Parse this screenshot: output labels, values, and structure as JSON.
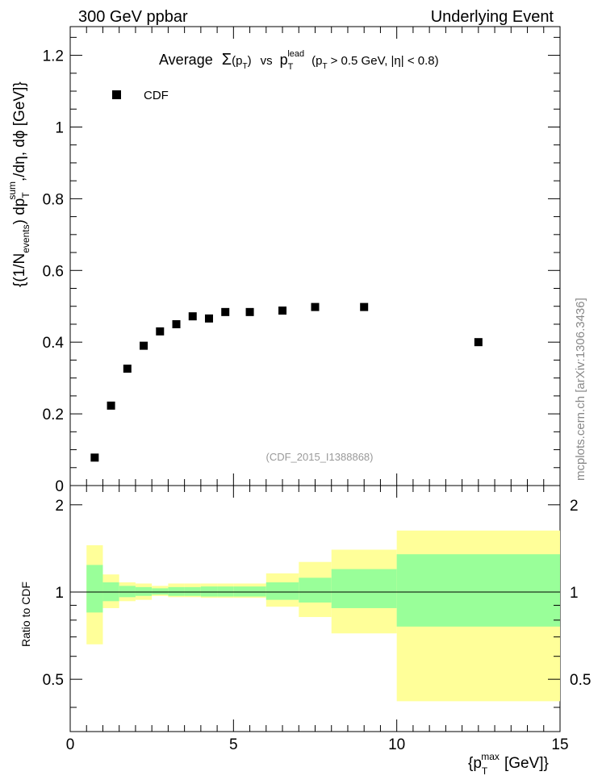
{
  "header": {
    "left_label": "300 GeV ppbar",
    "right_label": "Underlying Event"
  },
  "watermark": "mcplots.cern.ch [arXiv:1306.3436]",
  "analysis_tag": "(CDF_2015_I1388868)",
  "legend": {
    "label": "CDF",
    "position": "top-left"
  },
  "title": {
    "prefix": "Average",
    "sigma": "Σ",
    "p": "p",
    "t": "T",
    "vs": "vs",
    "lead": "lead",
    "cuts_a": "(p",
    "cuts_b": "> 0.5 GeV, |η| < 0.8)"
  },
  "ylabel": {
    "part1": "{(1/N",
    "events": "events",
    "part2": ") dp",
    "sum": "sum",
    "t": "T",
    "part3": ",/dη, dϕ [GeV]}"
  },
  "xlabel": {
    "main": "{p",
    "max": "max",
    "t": "T",
    "unit": "[GeV]}"
  },
  "ratio_ylabel": "Ratio to CDF",
  "chart_data": [
    {
      "type": "scatter",
      "name": "main",
      "series": [
        {
          "name": "CDF",
          "x": [
            0.75,
            1.25,
            1.75,
            2.25,
            2.75,
            3.25,
            3.75,
            4.25,
            4.75,
            5.5,
            6.5,
            7.5,
            9.0,
            12.5
          ],
          "y": [
            0.078,
            0.223,
            0.326,
            0.39,
            0.43,
            0.45,
            0.472,
            0.466,
            0.484,
            0.484,
            0.488,
            0.498,
            0.498,
            0.4
          ]
        }
      ],
      "xlim": [
        0,
        15
      ],
      "ylim": [
        0,
        1.28
      ],
      "yticks": [
        0,
        0.2,
        0.4,
        0.6,
        0.8,
        1,
        1.2
      ],
      "ytick_labels": [
        "0",
        "0.2",
        "0.4",
        "0.6",
        "0.8",
        "1",
        "1.2"
      ]
    },
    {
      "type": "area",
      "name": "ratio",
      "bins": [
        [
          0.5,
          1.0
        ],
        [
          1.0,
          1.5
        ],
        [
          1.5,
          2.0
        ],
        [
          2.0,
          2.5
        ],
        [
          2.5,
          3.0
        ],
        [
          3.0,
          3.5
        ],
        [
          3.5,
          4.0
        ],
        [
          4.0,
          4.5
        ],
        [
          4.5,
          5.0
        ],
        [
          5.0,
          6.0
        ],
        [
          6.0,
          7.0
        ],
        [
          7.0,
          8.0
        ],
        [
          8.0,
          10.0
        ],
        [
          10.0,
          15.0
        ]
      ],
      "band_inner": [
        [
          0.85,
          1.24
        ],
        [
          0.93,
          1.08
        ],
        [
          0.96,
          1.05
        ],
        [
          0.97,
          1.04
        ],
        [
          0.98,
          1.03
        ],
        [
          0.97,
          1.04
        ],
        [
          0.97,
          1.04
        ],
        [
          0.965,
          1.045
        ],
        [
          0.965,
          1.045
        ],
        [
          0.965,
          1.045
        ],
        [
          0.94,
          1.08
        ],
        [
          0.92,
          1.12
        ],
        [
          0.88,
          1.2
        ],
        [
          0.76,
          1.35
        ]
      ],
      "band_outer": [
        [
          0.66,
          1.45
        ],
        [
          0.88,
          1.15
        ],
        [
          0.93,
          1.08
        ],
        [
          0.94,
          1.07
        ],
        [
          0.97,
          1.05
        ],
        [
          0.96,
          1.07
        ],
        [
          0.96,
          1.07
        ],
        [
          0.955,
          1.07
        ],
        [
          0.955,
          1.07
        ],
        [
          0.955,
          1.07
        ],
        [
          0.89,
          1.16
        ],
        [
          0.82,
          1.27
        ],
        [
          0.72,
          1.4
        ],
        [
          0.42,
          1.63
        ]
      ],
      "reference": 1,
      "xlim": [
        0,
        15
      ],
      "ylim": [
        0.33,
        2.33
      ],
      "yticks": [
        0.5,
        1,
        2
      ],
      "ytick_labels": [
        "0.5",
        "1",
        "2"
      ],
      "xticks": [
        0,
        5,
        10,
        15
      ],
      "xtick_labels": [
        "0",
        "5",
        "10",
        "15"
      ],
      "colors": {
        "inner": "#99ff99",
        "outer": "#ffff99",
        "marker": "#000000"
      }
    }
  ]
}
